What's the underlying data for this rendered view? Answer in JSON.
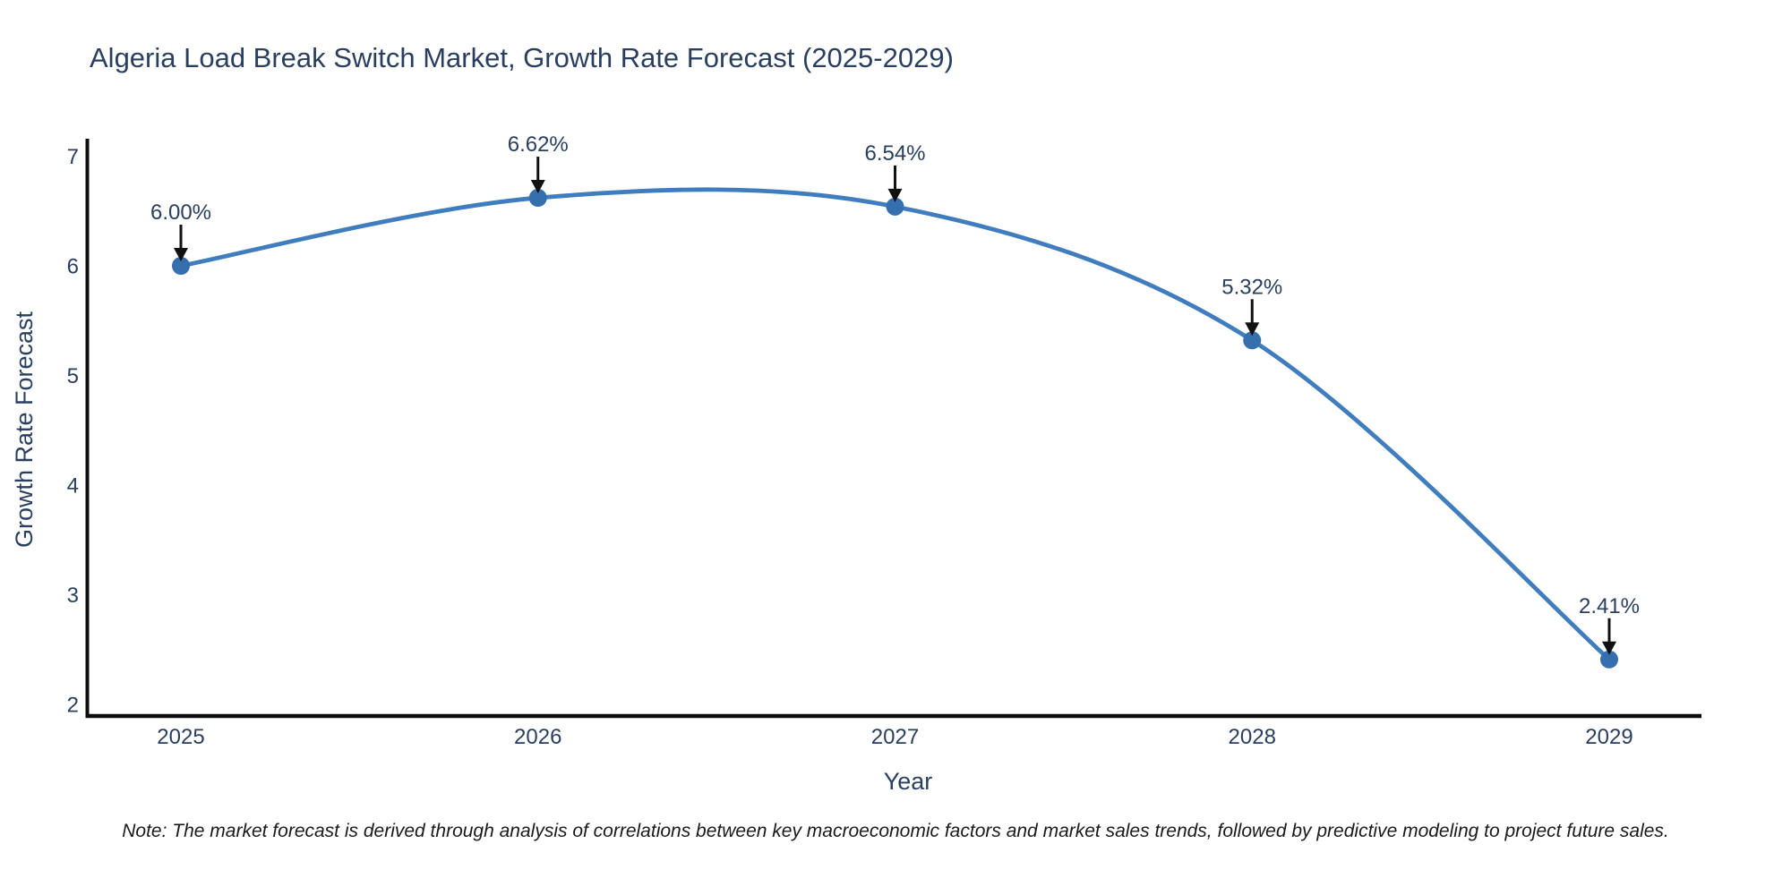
{
  "title": "Algeria Load Break Switch Market, Growth Rate Forecast (2025-2029)",
  "note": "Note: The market forecast is derived through analysis of correlations between key macroeconomic factors and market sales trends, followed by predictive modeling to project future sales.",
  "chart_data": {
    "type": "line",
    "title": "Algeria Load Break Switch Market, Growth Rate Forecast (2025-2029)",
    "x": [
      2025,
      2026,
      2027,
      2028,
      2029
    ],
    "values": [
      6.0,
      6.62,
      6.54,
      5.32,
      2.41
    ],
    "point_labels": [
      "6.00%",
      "6.62%",
      "6.54%",
      "5.32%",
      "2.41%"
    ],
    "xlabel": "Year",
    "ylabel": "Growth Rate Forecast",
    "ylim": [
      2,
      7
    ],
    "yticks": [
      7,
      6,
      5,
      4,
      3,
      2
    ],
    "xticks": [
      "2025",
      "2026",
      "2027",
      "2028",
      "2029"
    ],
    "line_shape": "spline",
    "grid": false,
    "legend": "none",
    "line_color": "#3f7dbe",
    "marker_color": "#356fad",
    "axis_color": "#0d0d0d",
    "text_color": "#2a3f5f",
    "arrow_color": "#111111"
  }
}
